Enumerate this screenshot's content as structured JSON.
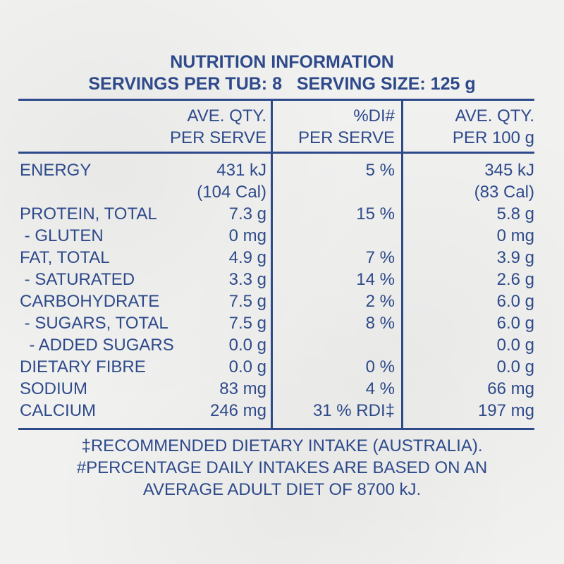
{
  "header": {
    "title": "NUTRITION INFORMATION",
    "servings": "SERVINGS PER TUB: 8",
    "serving_size": "SERVING SIZE: 125 g"
  },
  "columns": {
    "serve_1": "AVE. QTY.",
    "serve_2": "PER SERVE",
    "di_1": "%DI#",
    "di_2": "PER SERVE",
    "per100_1": "AVE. QTY.",
    "per100_2": "PER 100 g"
  },
  "rows": [
    {
      "label": "ENERGY",
      "serve": "431 kJ",
      "di": "5 %",
      "per100": "345 kJ"
    },
    {
      "label": "",
      "serve": "(104 Cal)",
      "di": "",
      "per100": "(83 Cal)"
    },
    {
      "label": "PROTEIN, TOTAL",
      "serve": "7.3 g",
      "di": "15 %",
      "per100": "5.8 g"
    },
    {
      "label": " - GLUTEN",
      "serve": "0 mg",
      "di": "",
      "per100": "0 mg"
    },
    {
      "label": "FAT, TOTAL",
      "serve": "4.9 g",
      "di": "7 %",
      "per100": "3.9 g"
    },
    {
      "label": " - SATURATED",
      "serve": "3.3 g",
      "di": "14 %",
      "per100": "2.6 g"
    },
    {
      "label": "CARBOHYDRATE",
      "serve": "7.5 g",
      "di": "2 %",
      "per100": "6.0 g"
    },
    {
      "label": " - SUGARS, TOTAL",
      "serve": "7.5 g",
      "di": "8 %",
      "per100": "6.0 g"
    },
    {
      "label": "  - ADDED SUGARS",
      "serve": "0.0 g",
      "di": "",
      "per100": "0.0 g"
    },
    {
      "label": "DIETARY FIBRE",
      "serve": "0.0 g",
      "di": "0 %",
      "per100": "0.0 g"
    },
    {
      "label": "SODIUM",
      "serve": "83 mg",
      "di": "4 %",
      "per100": "66 mg"
    },
    {
      "label": "CALCIUM",
      "serve": "246 mg",
      "di": "31 % RDI‡",
      "per100": "197 mg"
    }
  ],
  "footnotes": {
    "line1": "‡RECOMMENDED DIETARY INTAKE (AUSTRALIA).",
    "line2": "#PERCENTAGE DAILY INTAKES ARE BASED ON AN",
    "line3": "AVERAGE ADULT DIET OF 8700 kJ."
  },
  "colors": {
    "ink": "#2e4a8a",
    "background": "#f1f1f0"
  }
}
